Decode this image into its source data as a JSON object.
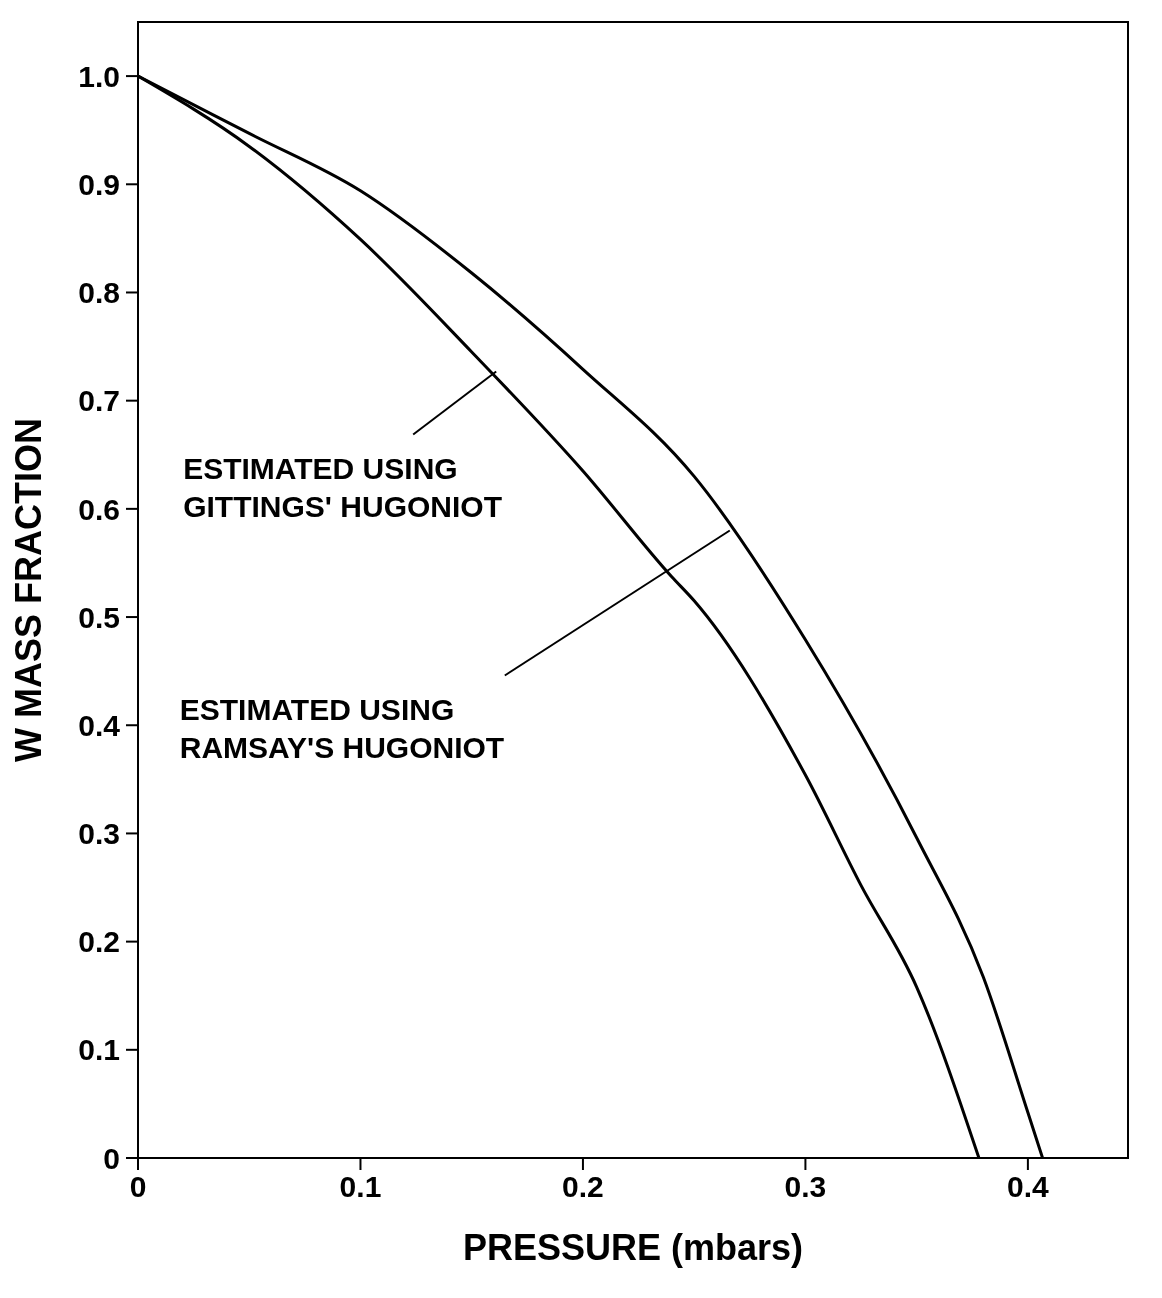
{
  "chart_data": {
    "type": "line",
    "xlabel": "PRESSURE (mbars)",
    "ylabel": "W MASS FRACTION",
    "xlim": [
      0,
      0.445
    ],
    "xticks": [
      0,
      0.1,
      0.2,
      0.3,
      0.4
    ],
    "ylim": [
      0,
      1.05
    ],
    "yticks": [
      0,
      0.1,
      0.2,
      0.3,
      0.4,
      0.5,
      0.6,
      0.7,
      0.8,
      0.9,
      {
        "value": 1,
        "label": "1.0"
      }
    ],
    "grid": false,
    "legend": false,
    "marker": "none",
    "line_style": "solid",
    "series": [
      {
        "color": "#000000",
        "x": [
          0,
          0.05,
          0.1,
          0.15,
          0.2,
          0.25,
          0.3,
          0.35,
          0.38,
          0.4,
          0.4066
        ],
        "values": [
          1,
          0.947,
          0.894,
          0.818,
          0.729,
          0.63,
          0.479,
          0.296,
          0.167,
          0.042,
          0
        ]
      },
      {
        "color": "#000000",
        "x": [
          0,
          0.05,
          0.1,
          0.15,
          0.2,
          0.24,
          0.25,
          0.3,
          0.325,
          0.35,
          0.378
        ],
        "values": [
          1,
          0.935,
          0.849,
          0.745,
          0.635,
          0.537,
          0.515,
          0.354,
          0.252,
          0.158,
          0
        ]
      }
    ],
    "annotations": [
      {
        "text": "ESTIMATED USING\nGITTINGS' HUGONIOT",
        "x": 0.161,
        "y": 0.727
      },
      {
        "text": "ESTIMATED USING\nRAMSAY'S HUGONIOT",
        "x": 0.266,
        "y": 0.58
      }
    ]
  }
}
